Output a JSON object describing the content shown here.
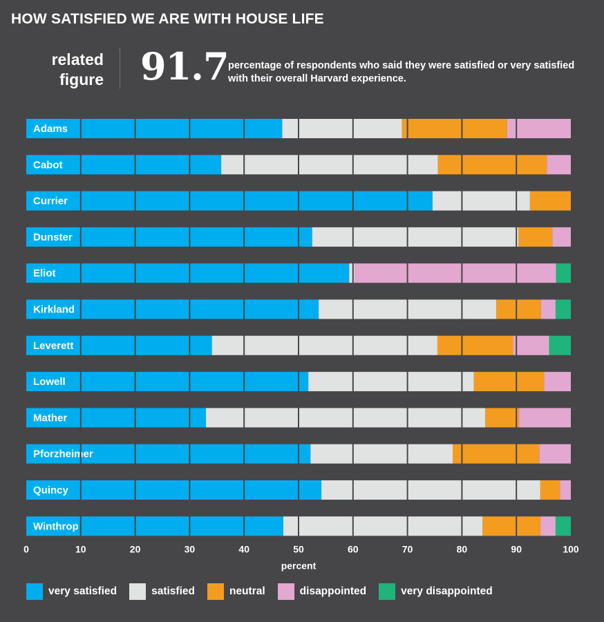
{
  "title": "HOW SATISFIED WE ARE WITH HOUSE LIFE",
  "related": {
    "line1": "related",
    "line2": "figure"
  },
  "highlight": {
    "value": "91.7",
    "text": "percentage of respondents who said they were satisfied or very satisfied with their overall Harvard experience."
  },
  "colors": {
    "background": "#464648",
    "very_satisfied": "#00aeef",
    "satisfied": "#e1e2e2",
    "neutral": "#f49c20",
    "disappointed": "#e3a8d0",
    "very_disappointed": "#1eb47c"
  },
  "chart_data": {
    "type": "bar",
    "orientation": "horizontal",
    "stacked": true,
    "categories": [
      "Adams",
      "Cabot",
      "Currier",
      "Dunster",
      "Eliot",
      "Kirkland",
      "Leverett",
      "Lowell",
      "Mather",
      "Pforzheimer",
      "Quincy",
      "Winthrop"
    ],
    "series": [
      {
        "name": "very satisfied",
        "key": "very_satisfied",
        "values": [
          47.0,
          35.8,
          74.6,
          52.5,
          59.3,
          53.7,
          34.1,
          51.8,
          33.0,
          52.2,
          54.2,
          47.2
        ]
      },
      {
        "name": "satisfied",
        "key": "satisfied",
        "values": [
          22.0,
          39.8,
          17.9,
          37.9,
          1.0,
          32.6,
          41.4,
          30.4,
          51.3,
          26.1,
          40.2,
          36.6
        ]
      },
      {
        "name": "neutral",
        "key": "neutral",
        "values": [
          19.3,
          20.0,
          7.5,
          6.2,
          0.0,
          8.2,
          13.9,
          12.9,
          6.2,
          15.9,
          3.6,
          10.6
        ]
      },
      {
        "name": "disappointed",
        "key": "disappointed",
        "values": [
          11.7,
          4.4,
          0.0,
          3.4,
          37.0,
          2.7,
          6.6,
          4.9,
          9.5,
          5.8,
          2.0,
          2.8
        ]
      },
      {
        "name": "very disappointed",
        "key": "very_disappointed",
        "values": [
          0.0,
          0.0,
          0.0,
          0.0,
          2.7,
          2.8,
          4.0,
          0.0,
          0.0,
          0.0,
          0.0,
          2.8
        ]
      }
    ],
    "xlabel": "percent",
    "xlim": [
      0,
      100
    ],
    "xticks": [
      0,
      10,
      20,
      30,
      40,
      50,
      60,
      70,
      80,
      90,
      100
    ],
    "grid": true,
    "legend": "bottom"
  }
}
